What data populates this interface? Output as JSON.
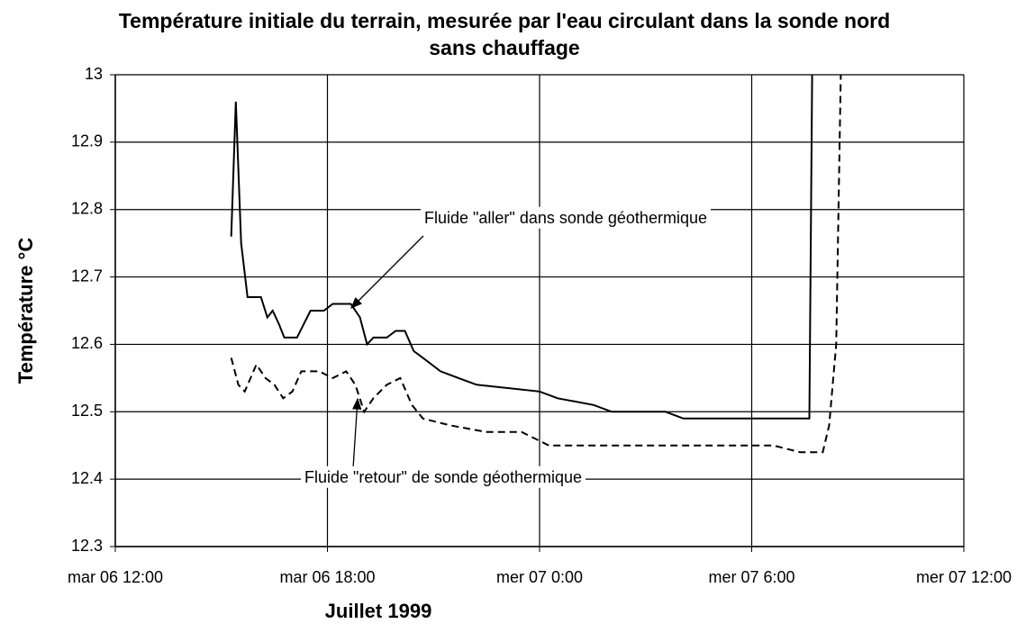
{
  "chart_data": {
    "type": "line",
    "title": "Température initiale du terrain, mesurée par l'eau circulant dans la sonde nord sans chauffage",
    "x_label": "Juillet 1999",
    "y_label": "Température °C",
    "xlim": [
      12,
      36
    ],
    "xticks": [
      {
        "value": 12,
        "label": "mar 06 12:00"
      },
      {
        "value": 18,
        "label": "mar 06 18:00"
      },
      {
        "value": 24,
        "label": "mer 07 0:00"
      },
      {
        "value": 30,
        "label": "mer 07 6:00"
      },
      {
        "value": 36,
        "label": "mer 07 12:00"
      }
    ],
    "ylim": [
      12.3,
      13
    ],
    "yticks": [
      12.3,
      12.4,
      12.5,
      12.6,
      12.7,
      12.8,
      12.9,
      13
    ],
    "grid": true,
    "series": [
      {
        "name": "Fluide \"aller\" dans sonde géothermique",
        "color": "#000000",
        "linestyle": "solid",
        "x": [
          15.28,
          15.41,
          15.56,
          15.74,
          16.12,
          16.3,
          16.45,
          16.63,
          16.78,
          17.14,
          17.52,
          17.9,
          18.15,
          18.66,
          18.92,
          19.12,
          19.3,
          19.68,
          19.93,
          20.19,
          20.44,
          20.7,
          21.2,
          21.71,
          22.22,
          24.0,
          24.51,
          25.53,
          26.04,
          27.56,
          28.07,
          31.63,
          31.71
        ],
        "values": [
          12.76,
          12.96,
          12.75,
          12.67,
          12.67,
          12.64,
          12.65,
          12.63,
          12.61,
          12.61,
          12.65,
          12.65,
          12.66,
          12.66,
          12.64,
          12.6,
          12.61,
          12.61,
          12.62,
          12.62,
          12.59,
          12.58,
          12.56,
          12.55,
          12.54,
          12.53,
          12.52,
          12.51,
          12.5,
          12.5,
          12.49,
          12.49,
          13.0
        ]
      },
      {
        "name": "Fluide \"retour\" de sonde géothermique",
        "color": "#000000",
        "linestyle": "dashed",
        "x": [
          15.28,
          15.48,
          15.66,
          15.99,
          16.25,
          16.5,
          16.75,
          17.01,
          17.26,
          17.77,
          18.15,
          18.53,
          18.79,
          19.04,
          19.3,
          19.68,
          20.06,
          20.39,
          20.7,
          21.46,
          22.48,
          23.49,
          24.26,
          25.02,
          27.56,
          30.61,
          31.37,
          32.01,
          32.19,
          32.39,
          32.52
        ],
        "values": [
          12.58,
          12.54,
          12.53,
          12.57,
          12.55,
          12.54,
          12.52,
          12.53,
          12.56,
          12.56,
          12.55,
          12.56,
          12.54,
          12.5,
          12.52,
          12.54,
          12.55,
          12.51,
          12.49,
          12.48,
          12.47,
          12.47,
          12.45,
          12.45,
          12.45,
          12.45,
          12.44,
          12.44,
          12.48,
          12.6,
          13.0
        ]
      }
    ]
  }
}
